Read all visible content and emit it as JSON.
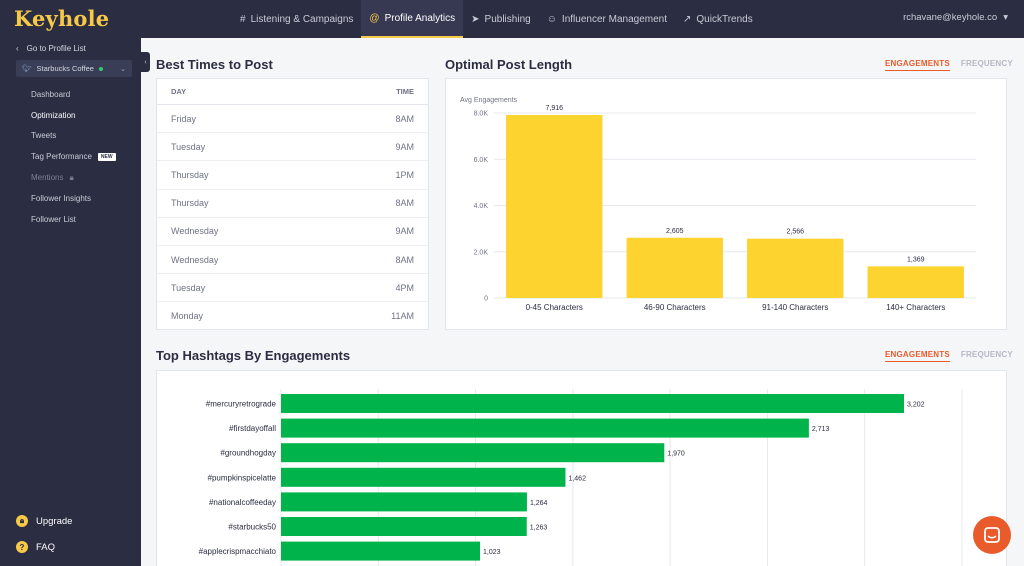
{
  "app": {
    "logo": "Keyhole",
    "user": "rchavane@keyhole.co"
  },
  "nav": [
    {
      "label": "Listening & Campaigns",
      "icon": "hash-icon"
    },
    {
      "label": "Profile Analytics",
      "icon": "at-icon",
      "active": true
    },
    {
      "label": "Publishing",
      "icon": "send-icon"
    },
    {
      "label": "Influencer Management",
      "icon": "person-icon"
    },
    {
      "label": "QuickTrends",
      "icon": "trend-icon"
    }
  ],
  "sidebar": {
    "back": "Go to Profile List",
    "account": "Starbucks Coffee",
    "items": [
      {
        "label": "Dashboard"
      },
      {
        "label": "Optimization",
        "active": true
      },
      {
        "label": "Tweets"
      },
      {
        "label": "Tag Performance",
        "badge": "NEW"
      },
      {
        "label": "Mentions",
        "locked": true
      },
      {
        "label": "Follower Insights"
      },
      {
        "label": "Follower List"
      }
    ],
    "upgrade": "Upgrade",
    "faq": "FAQ"
  },
  "best_times": {
    "title": "Best Times to Post",
    "col_day": "DAY",
    "col_time": "TIME",
    "rows": [
      {
        "day": "Friday",
        "time": "8AM"
      },
      {
        "day": "Tuesday",
        "time": "9AM"
      },
      {
        "day": "Thursday",
        "time": "1PM"
      },
      {
        "day": "Thursday",
        "time": "8AM"
      },
      {
        "day": "Wednesday",
        "time": "9AM"
      },
      {
        "day": "Wednesday",
        "time": "8AM"
      },
      {
        "day": "Tuesday",
        "time": "4PM"
      },
      {
        "day": "Monday",
        "time": "11AM"
      }
    ]
  },
  "post_length": {
    "title": "Optimal Post Length",
    "toggle_on": "ENGAGEMENTS",
    "toggle_off": "FREQUENCY"
  },
  "hashtags": {
    "title": "Top Hashtags By Engagements",
    "toggle_on": "ENGAGEMENTS",
    "toggle_off": "FREQUENCY"
  },
  "colors": {
    "nav_bg": "#2b2d42",
    "accent": "#f7c948",
    "bar_yellow": "#fdd330",
    "bar_green": "#00b34a",
    "toggle": "#ea5b2b"
  },
  "chart_data": [
    {
      "type": "bar",
      "ylabel": "Avg Engagements",
      "categories": [
        "0-45 Characters",
        "46-90 Characters",
        "91-140 Characters",
        "140+ Characters"
      ],
      "values": [
        7916,
        2605,
        2566,
        1369
      ],
      "value_labels": [
        "7,916",
        "2,605",
        "2,566",
        "1,369"
      ],
      "yticks": [
        "0",
        "2.0K",
        "4.0K",
        "6.0K",
        "8.0K"
      ],
      "ylim": [
        0,
        8000
      ],
      "grid": true
    },
    {
      "type": "bar",
      "orientation": "horizontal",
      "categories": [
        "#mercuryretrograde",
        "#firstdayoffall",
        "#groundhogday",
        "#pumpkinspicelatte",
        "#nationalcoffeeday",
        "#starbucks50",
        "#applecrispmacchiato"
      ],
      "values": [
        3202,
        2713,
        1970,
        1462,
        1264,
        1263,
        1023
      ],
      "value_labels": [
        "3,202",
        "2,713",
        "1,970",
        "1,462",
        "1,264",
        "1,263",
        "1,023"
      ],
      "xlim": [
        0,
        3500
      ],
      "grid": true
    }
  ]
}
